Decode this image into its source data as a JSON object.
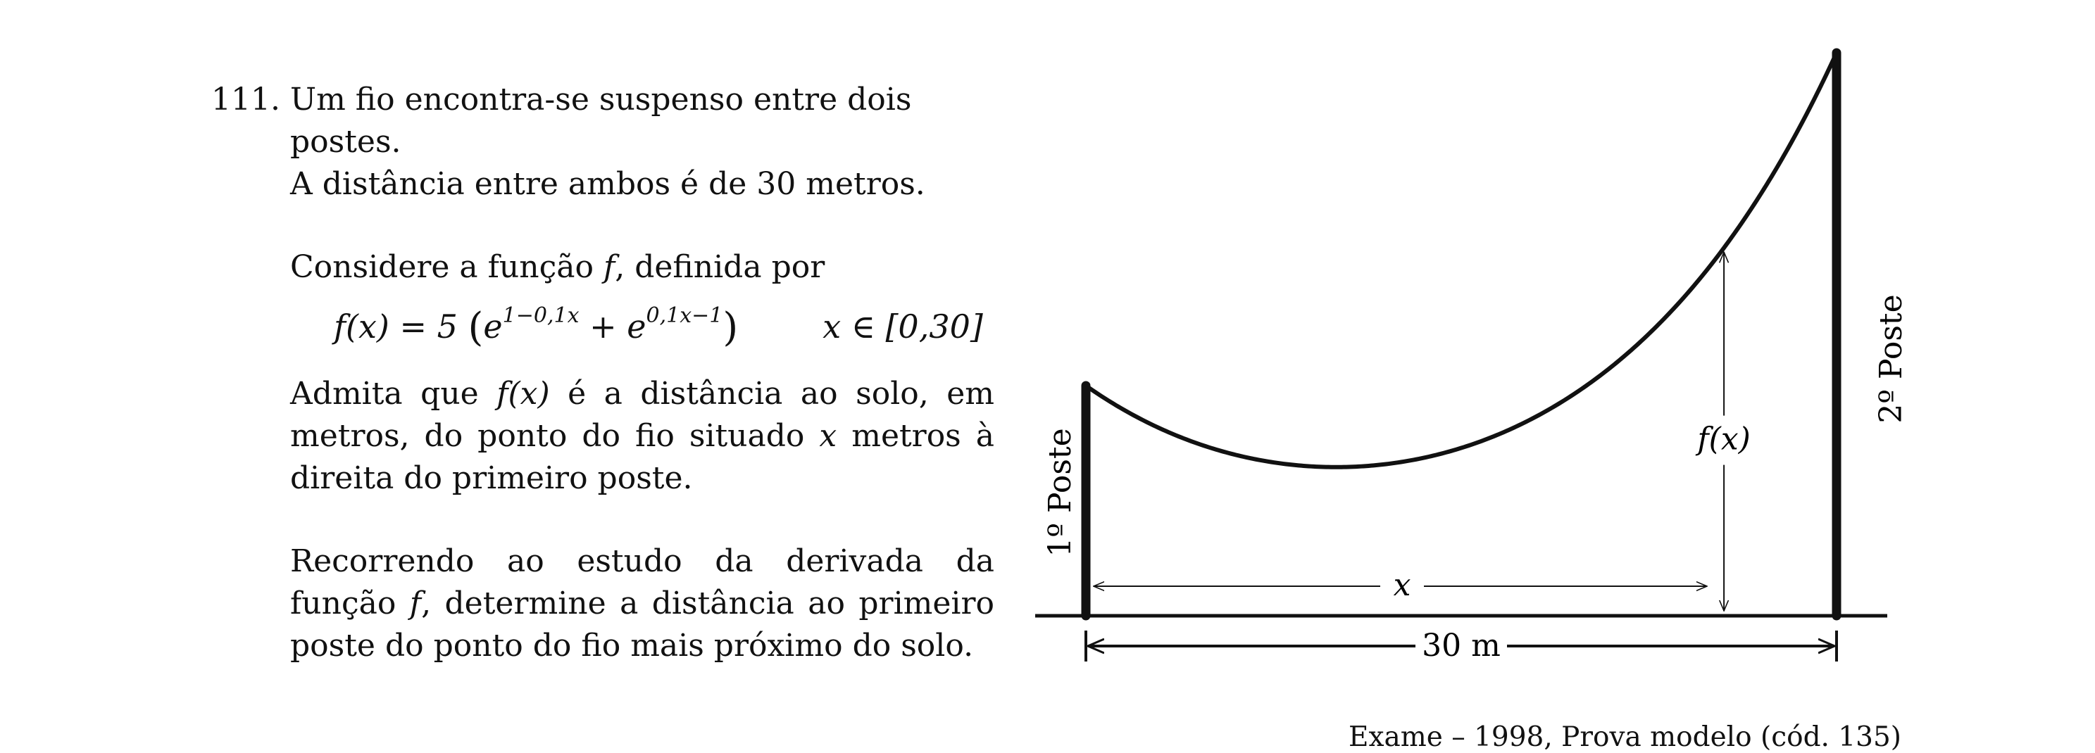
{
  "problem": {
    "number": "111.",
    "intro_line1": "Um fio encontra-se suspenso entre dois postes.",
    "intro_line2": "A distância entre ambos é de 30 metros.",
    "consider_a": "Considere a função ",
    "consider_f": "f",
    "consider_b": ", definida por",
    "formula": {
      "lhs": "f(x) = 5",
      "term1_base": "e",
      "term1_exp": "1−0,1x",
      "plus": " + ",
      "term2_base": "e",
      "term2_exp": "0,1x−1",
      "domain": "x ∈ [0,30]"
    },
    "admit_a": "Admita que ",
    "admit_fx": "f(x)",
    "admit_b": " é a distância ao solo, em metros, do ponto do fio situado ",
    "admit_x": "x",
    "admit_c": " metros à direita do primeiro poste.",
    "task_a": "Recorrendo ao estudo da derivada da função ",
    "task_f": "f",
    "task_b": ", determine a distância ao primeiro poste do ponto do fio mais próximo do solo."
  },
  "figure": {
    "pole1_label": "1º Poste",
    "pole2_label": "2º Poste",
    "fx_label": "f(x)",
    "x_label": "x",
    "span_label": "30 m",
    "span_m": 30,
    "sample_x_m": 25.5,
    "fx_formula_coeff": 5,
    "fx_formula_k": 0.1,
    "fx_formula_shift": 1
  },
  "source": "Exame – 1998, Prova modelo (cód. 135)"
}
